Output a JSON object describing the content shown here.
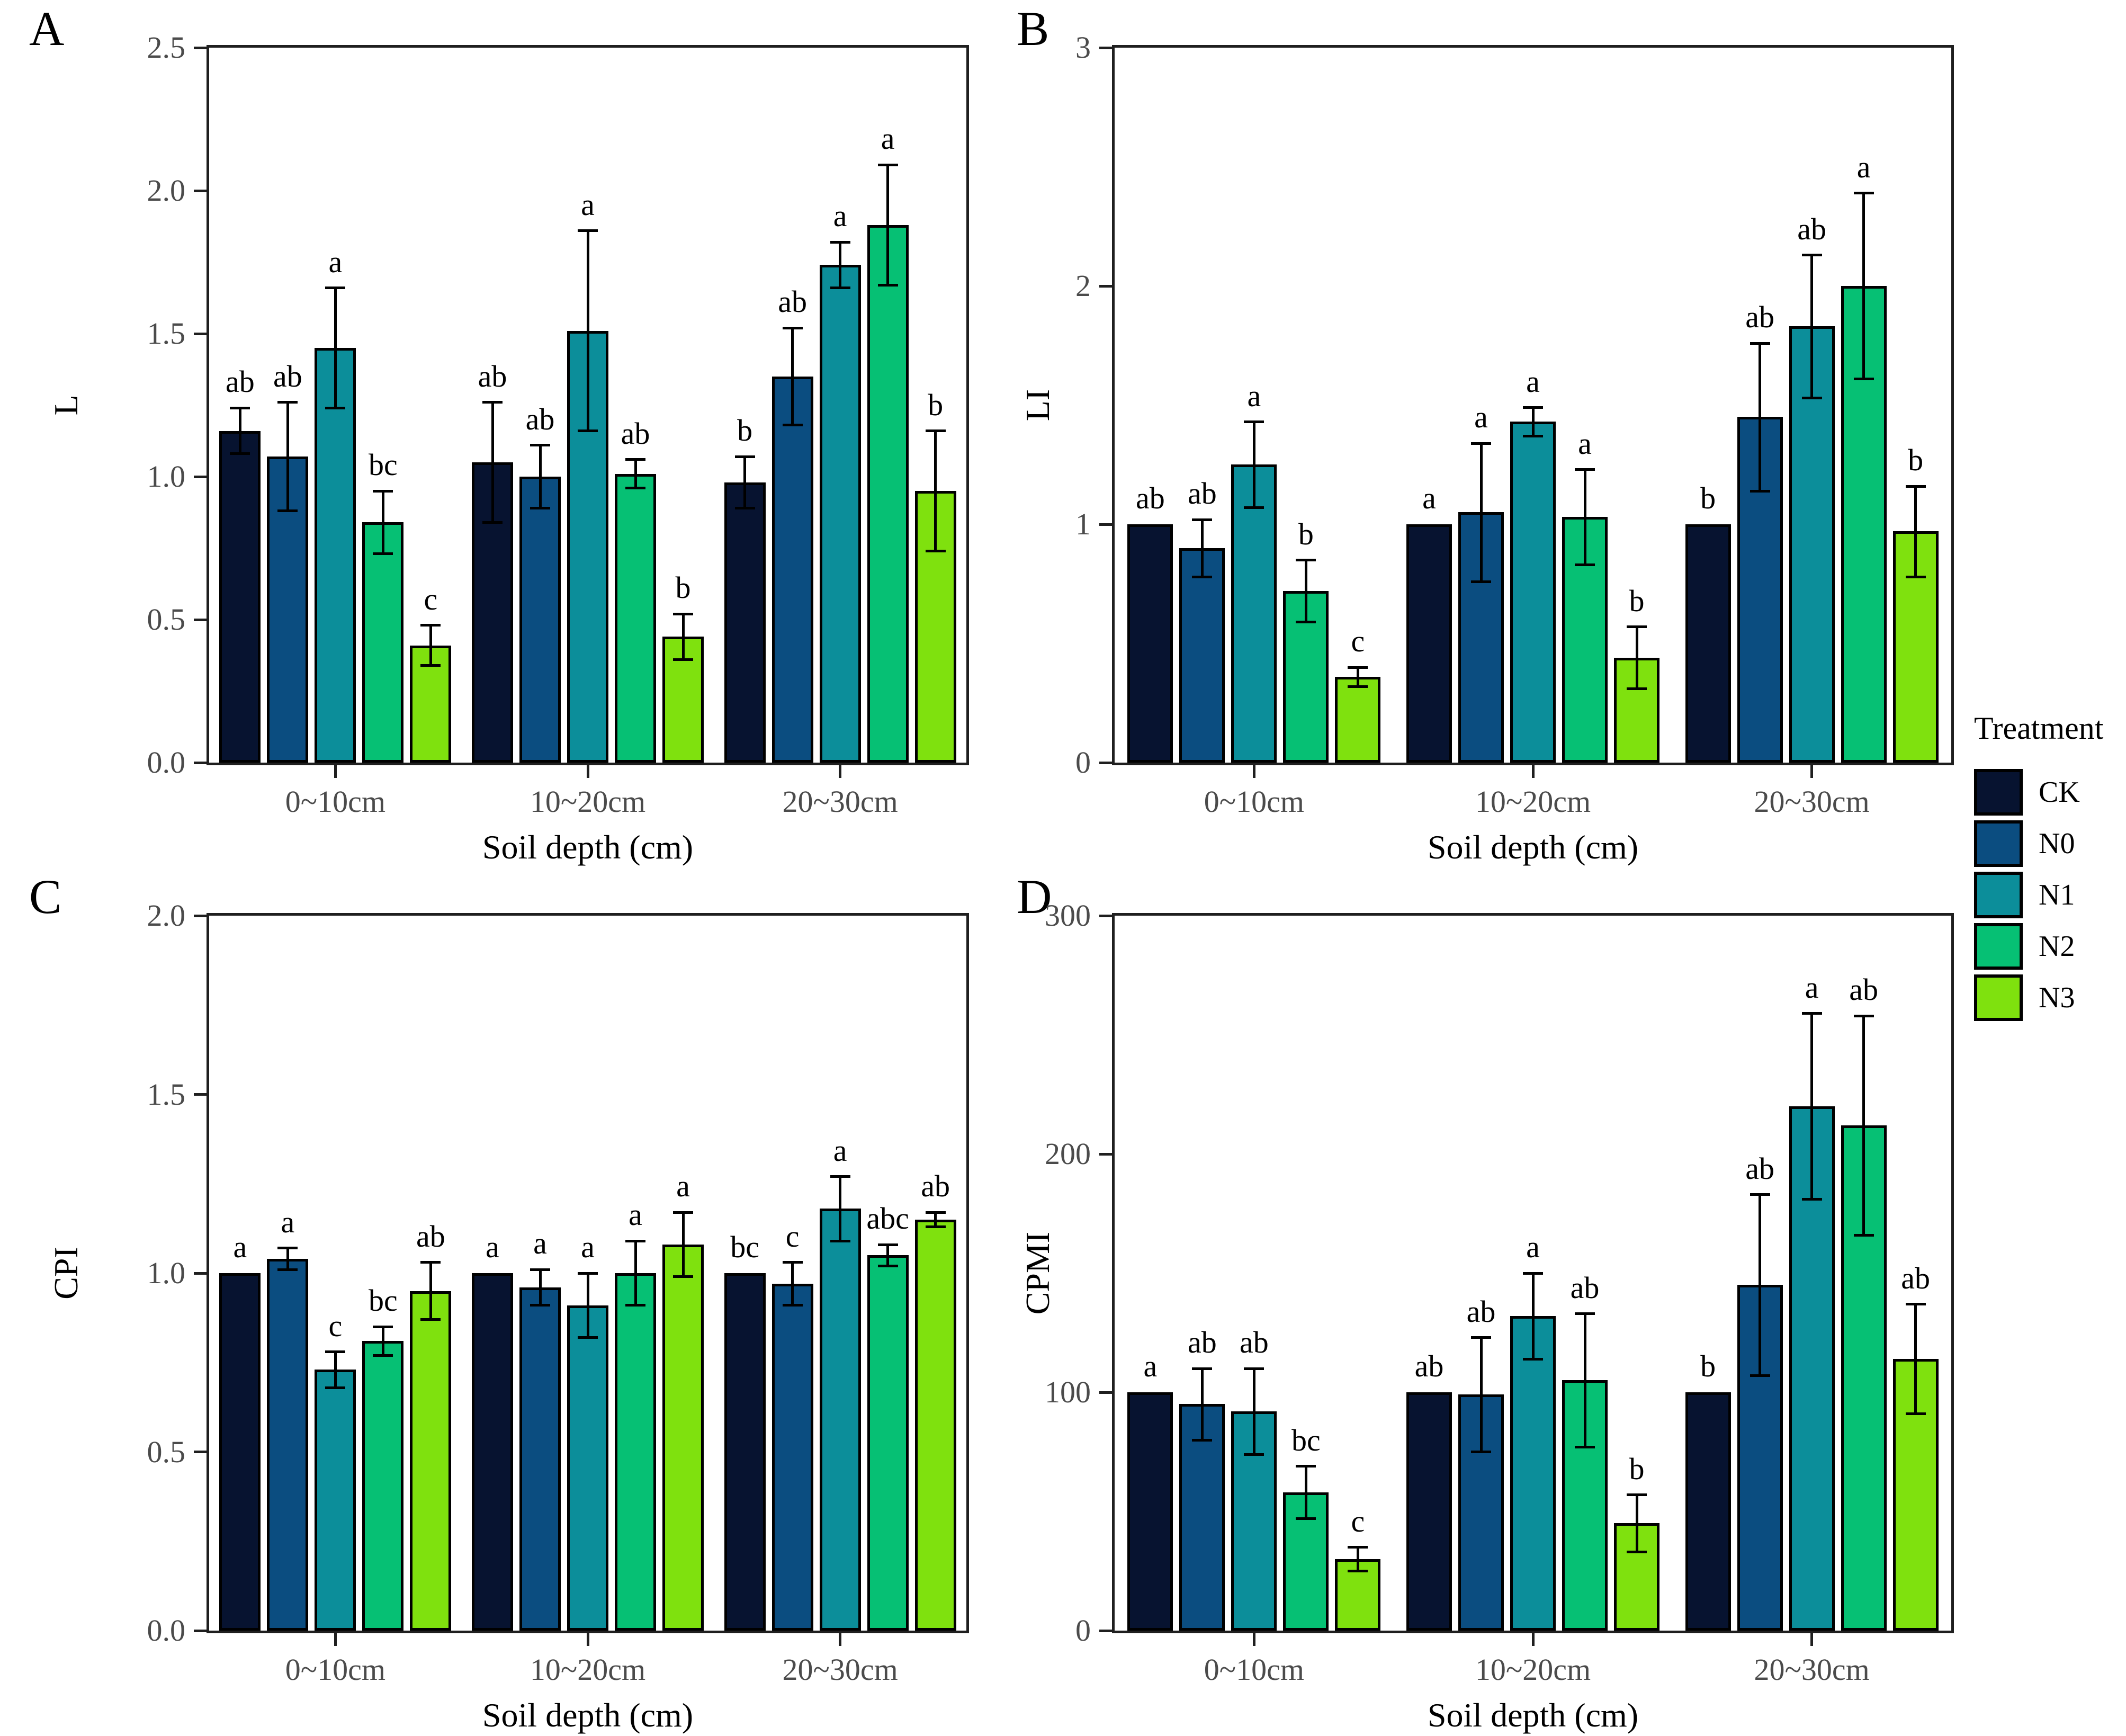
{
  "figure": {
    "xlabel": "Soil depth (cm)",
    "panel_letters": [
      "A",
      "B",
      "C",
      "D"
    ]
  },
  "legend": {
    "title": "Treatment",
    "items": [
      {
        "label": "CK",
        "color": "#071330"
      },
      {
        "label": "N0",
        "color": "#0b4d80"
      },
      {
        "label": "N1",
        "color": "#0c8e9a"
      },
      {
        "label": "N2",
        "color": "#06c074"
      },
      {
        "label": "N3",
        "color": "#7fe10e"
      }
    ]
  },
  "colors": {
    "axis": "#1f1f1f",
    "tick_label": "#4b4b4b",
    "error_bar": "#000000",
    "bar_border": "#000000"
  },
  "chart_data": [
    {
      "panel": "A",
      "type": "bar",
      "title": "",
      "xlabel": "Soil depth (cm)",
      "ylabel": "L",
      "ylim": [
        0,
        2.5
      ],
      "yticks": [
        "0.0",
        "0.5",
        "1.0",
        "1.5",
        "2.0",
        "2.5"
      ],
      "grid": false,
      "categories": [
        "0~10cm",
        "10~20cm",
        "20~30cm"
      ],
      "series": [
        {
          "name": "CK",
          "values": [
            1.16,
            1.05,
            0.98
          ],
          "errors": [
            0.08,
            0.21,
            0.09
          ],
          "letters": [
            "ab",
            "ab",
            "b"
          ]
        },
        {
          "name": "N0",
          "values": [
            1.07,
            1.0,
            1.35
          ],
          "errors": [
            0.19,
            0.11,
            0.17
          ],
          "letters": [
            "ab",
            "ab",
            "ab"
          ]
        },
        {
          "name": "N1",
          "values": [
            1.45,
            1.51,
            1.74
          ],
          "errors": [
            0.21,
            0.35,
            0.08
          ],
          "letters": [
            "a",
            "a",
            "a"
          ]
        },
        {
          "name": "N2",
          "values": [
            0.84,
            1.01,
            1.88
          ],
          "errors": [
            0.11,
            0.05,
            0.21
          ],
          "letters": [
            "bc",
            "ab",
            "a"
          ]
        },
        {
          "name": "N3",
          "values": [
            0.41,
            0.44,
            0.95
          ],
          "errors": [
            0.07,
            0.08,
            0.21
          ],
          "letters": [
            "c",
            "b",
            "b"
          ]
        }
      ]
    },
    {
      "panel": "B",
      "type": "bar",
      "title": "",
      "xlabel": "Soil depth (cm)",
      "ylabel": "LI",
      "ylim": [
        0,
        3
      ],
      "yticks": [
        "0",
        "1",
        "2",
        "3"
      ],
      "grid": false,
      "categories": [
        "0~10cm",
        "10~20cm",
        "20~30cm"
      ],
      "series": [
        {
          "name": "CK",
          "values": [
            1.0,
            1.0,
            1.0
          ],
          "errors": [
            0,
            0,
            0
          ],
          "letters": [
            "ab",
            "a",
            "b"
          ]
        },
        {
          "name": "N0",
          "values": [
            0.9,
            1.05,
            1.45
          ],
          "errors": [
            0.12,
            0.29,
            0.31
          ],
          "letters": [
            "ab",
            "a",
            "ab"
          ]
        },
        {
          "name": "N1",
          "values": [
            1.25,
            1.43,
            1.83
          ],
          "errors": [
            0.18,
            0.06,
            0.3
          ],
          "letters": [
            "a",
            "a",
            "ab"
          ]
        },
        {
          "name": "N2",
          "values": [
            0.72,
            1.03,
            2.0
          ],
          "errors": [
            0.13,
            0.2,
            0.39
          ],
          "letters": [
            "b",
            "a",
            "a"
          ]
        },
        {
          "name": "N3",
          "values": [
            0.36,
            0.44,
            0.97
          ],
          "errors": [
            0.04,
            0.13,
            0.19
          ],
          "letters": [
            "c",
            "b",
            "b"
          ]
        }
      ]
    },
    {
      "panel": "C",
      "type": "bar",
      "title": "",
      "xlabel": "Soil depth (cm)",
      "ylabel": "CPI",
      "ylim": [
        0,
        2.0
      ],
      "yticks": [
        "0.0",
        "0.5",
        "1.0",
        "1.5",
        "2.0"
      ],
      "grid": false,
      "categories": [
        "0~10cm",
        "10~20cm",
        "20~30cm"
      ],
      "series": [
        {
          "name": "CK",
          "values": [
            1.0,
            1.0,
            1.0
          ],
          "errors": [
            0,
            0,
            0
          ],
          "letters": [
            "a",
            "a",
            "bc"
          ]
        },
        {
          "name": "N0",
          "values": [
            1.04,
            0.96,
            0.97
          ],
          "errors": [
            0.03,
            0.05,
            0.06
          ],
          "letters": [
            "a",
            "a",
            "c"
          ]
        },
        {
          "name": "N1",
          "values": [
            0.73,
            0.91,
            1.18
          ],
          "errors": [
            0.05,
            0.09,
            0.09
          ],
          "letters": [
            "c",
            "a",
            "a"
          ]
        },
        {
          "name": "N2",
          "values": [
            0.81,
            1.0,
            1.05
          ],
          "errors": [
            0.04,
            0.09,
            0.03
          ],
          "letters": [
            "bc",
            "a",
            "abc"
          ]
        },
        {
          "name": "N3",
          "values": [
            0.95,
            1.08,
            1.15
          ],
          "errors": [
            0.08,
            0.09,
            0.02
          ],
          "letters": [
            "ab",
            "a",
            "ab"
          ]
        }
      ]
    },
    {
      "panel": "D",
      "type": "bar",
      "title": "",
      "xlabel": "Soil depth (cm)",
      "ylabel": "CPMI",
      "ylim": [
        0,
        300
      ],
      "yticks": [
        "0",
        "100",
        "200",
        "300"
      ],
      "grid": false,
      "categories": [
        "0~10cm",
        "10~20cm",
        "20~30cm"
      ],
      "series": [
        {
          "name": "CK",
          "values": [
            100,
            100,
            100
          ],
          "errors": [
            0,
            0,
            0
          ],
          "letters": [
            "a",
            "ab",
            "b"
          ]
        },
        {
          "name": "N0",
          "values": [
            95,
            99,
            145
          ],
          "errors": [
            15,
            24,
            38
          ],
          "letters": [
            "ab",
            "ab",
            "ab"
          ]
        },
        {
          "name": "N1",
          "values": [
            92,
            132,
            220
          ],
          "errors": [
            18,
            18,
            39
          ],
          "letters": [
            "ab",
            "a",
            "a"
          ]
        },
        {
          "name": "N2",
          "values": [
            58,
            105,
            212
          ],
          "errors": [
            11,
            28,
            46
          ],
          "letters": [
            "bc",
            "ab",
            "ab"
          ]
        },
        {
          "name": "N3",
          "values": [
            30,
            45,
            114
          ],
          "errors": [
            5,
            12,
            23
          ],
          "letters": [
            "c",
            "b",
            "ab"
          ]
        }
      ]
    }
  ]
}
